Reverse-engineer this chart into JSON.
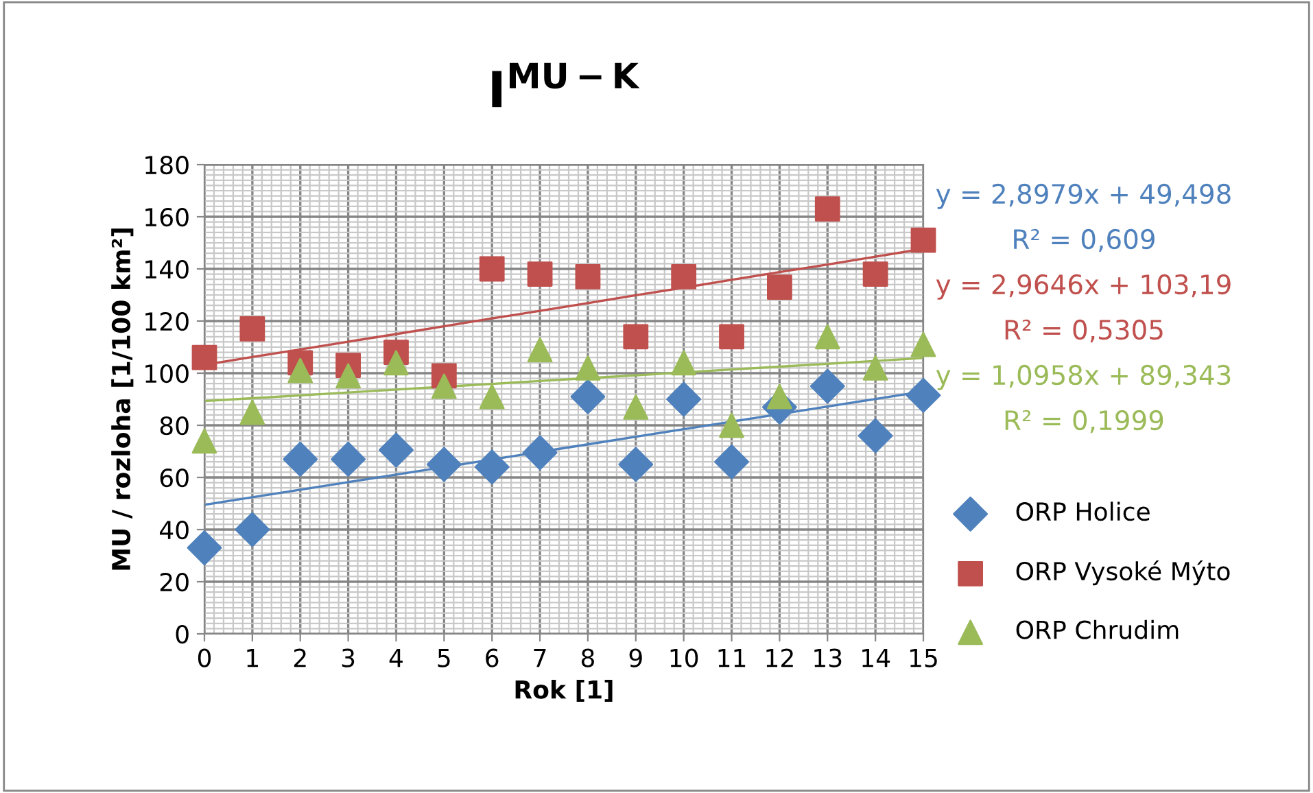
{
  "chart_data": {
    "type": "scatter",
    "title": "I$^{MU−K}$",
    "xlabel": "Rok [1]",
    "ylabel": "MU / rozloha [1/100 km²]",
    "x": [
      0,
      1,
      2,
      3,
      4,
      5,
      6,
      7,
      8,
      9,
      10,
      11,
      12,
      13,
      14,
      15
    ],
    "series": [
      {
        "name": "ORP Holice",
        "color": "#4f81bd",
        "marker": "diamond",
        "values": [
          33,
          40,
          67,
          67,
          70.5,
          65,
          64,
          69.5,
          91,
          65,
          90,
          66,
          87,
          95,
          76,
          91.5
        ]
      },
      {
        "name": "ORP Vysoké Mýto",
        "color": "#c0504d",
        "marker": "square",
        "values": [
          106,
          117,
          104,
          103,
          108,
          99,
          140,
          138,
          137,
          114,
          137,
          114,
          133,
          163,
          138,
          151
        ]
      },
      {
        "name": "ORP Chrudim",
        "color": "#9bbb59",
        "marker": "triangle",
        "values": [
          74,
          85,
          101,
          99,
          104,
          95,
          91,
          109,
          102,
          87,
          104,
          80,
          91,
          114,
          102,
          111
        ]
      },
      {
        "type": "line",
        "color": "#4f81bd",
        "values": [
          49.5,
          52.4,
          55.3,
          58.2,
          61.1,
          64.0,
          66.9,
          69.8,
          72.7,
          75.6,
          78.5,
          81.4,
          84.3,
          87.2,
          90.1,
          93.0
        ]
      },
      {
        "type": "line",
        "color": "#c0504d",
        "values": [
          103.2,
          106.2,
          109.1,
          112.1,
          115.0,
          118.0,
          121.0,
          123.9,
          126.9,
          129.9,
          132.8,
          135.8,
          138.8,
          141.7,
          144.7,
          147.7
        ]
      },
      {
        "type": "line",
        "color": "#9bbb59",
        "values": [
          89.3,
          90.4,
          91.5,
          92.6,
          93.7,
          94.8,
          95.9,
          97.0,
          98.1,
          99.2,
          100.3,
          101.4,
          102.5,
          103.6,
          104.7,
          105.8
        ]
      }
    ],
    "annotations": [
      "y = 2,8979x + 49,498",
      "R² = 0,609",
      "y = 2,9646x + 103,19",
      "R² = 0,5305",
      "y = 1,0958x + 89,343",
      "R² = 0,1999"
    ],
    "xlim": [
      0,
      15
    ],
    "xticks": [
      0,
      1,
      2,
      3,
      4,
      5,
      6,
      7,
      8,
      9,
      10,
      11,
      12,
      13,
      14,
      15
    ],
    "ylim": [
      0,
      180
    ],
    "yticks": [
      0,
      20,
      40,
      60,
      80,
      100,
      120,
      140,
      160,
      180
    ],
    "grid": true,
    "legend": "right"
  }
}
